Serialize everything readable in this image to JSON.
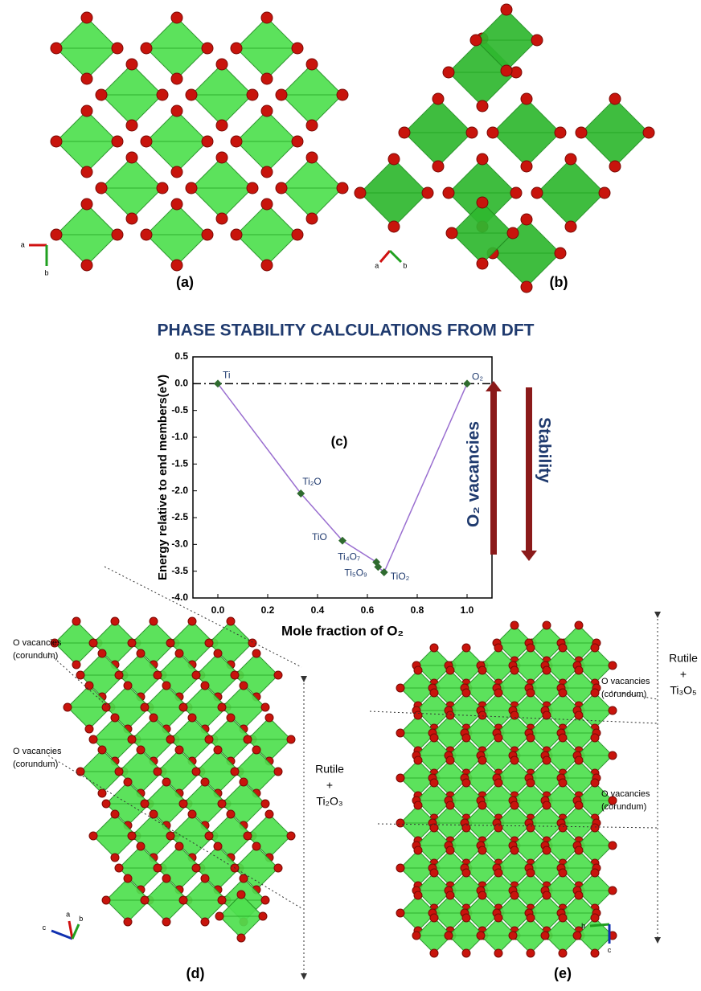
{
  "chart_data": {
    "type": "line",
    "title": "PHASE STABILITY CALCULATIONS FROM DFT",
    "xlabel": "Mole fraction of O₂",
    "ylabel": "Energy relative to end members(eV)",
    "panel_label": "(c)",
    "x": [
      0,
      0.333,
      0.5,
      0.636,
      0.643,
      0.667,
      1.0
    ],
    "values": [
      0,
      -2.05,
      -2.93,
      -3.33,
      -3.42,
      -3.52,
      0
    ],
    "point_labels": [
      "Ti",
      "Ti₂O",
      "TiO",
      "Ti₄O₇",
      "Ti₅O₉",
      "TiO₂",
      "O₂"
    ],
    "line_color": "#9a6fd0",
    "marker_color": "#2f6b2f",
    "reference_line": 0,
    "xlim": [
      -0.1,
      1.1
    ],
    "ylim": [
      -4.0,
      0.5
    ],
    "xticks": [
      {
        "value": 0,
        "label": "0.0"
      },
      0.2,
      0.4,
      0.6,
      0.8,
      {
        "value": 1,
        "label": "1.0"
      }
    ],
    "yticks": [
      0.5,
      {
        "value": 0,
        "label": "0.0"
      },
      -0.5,
      {
        "value": -1,
        "label": "-1.0"
      },
      -1.5,
      {
        "value": -2,
        "label": "-2.0"
      },
      -2.5,
      {
        "value": -3,
        "label": "-3.0"
      },
      -3.5,
      {
        "value": -4,
        "label": "-4.0"
      }
    ],
    "arrow_labels": [
      "O₂ vacancies",
      "Stability"
    ]
  },
  "figure": {
    "panels": [
      "(a)",
      "(b)",
      "(d)",
      "(e)"
    ],
    "axes_a": [
      "a",
      "b"
    ],
    "axes_b": [
      "a",
      "b"
    ],
    "axes_d": [
      "c",
      "a",
      "b"
    ],
    "axes_e": [
      "b",
      "c"
    ],
    "annotations": [
      [
        "O vacancies",
        "(corundum)"
      ],
      [
        "O vacancies",
        "(corundum)"
      ],
      [
        "O vacancies",
        "(corundum)"
      ],
      [
        "O vacancies",
        "(corundum)"
      ]
    ],
    "phase_d": [
      "Rutile",
      "+",
      "Ti₂O₃"
    ],
    "phase_e": [
      "Rutile",
      "+",
      "Ti₃O₅"
    ]
  }
}
